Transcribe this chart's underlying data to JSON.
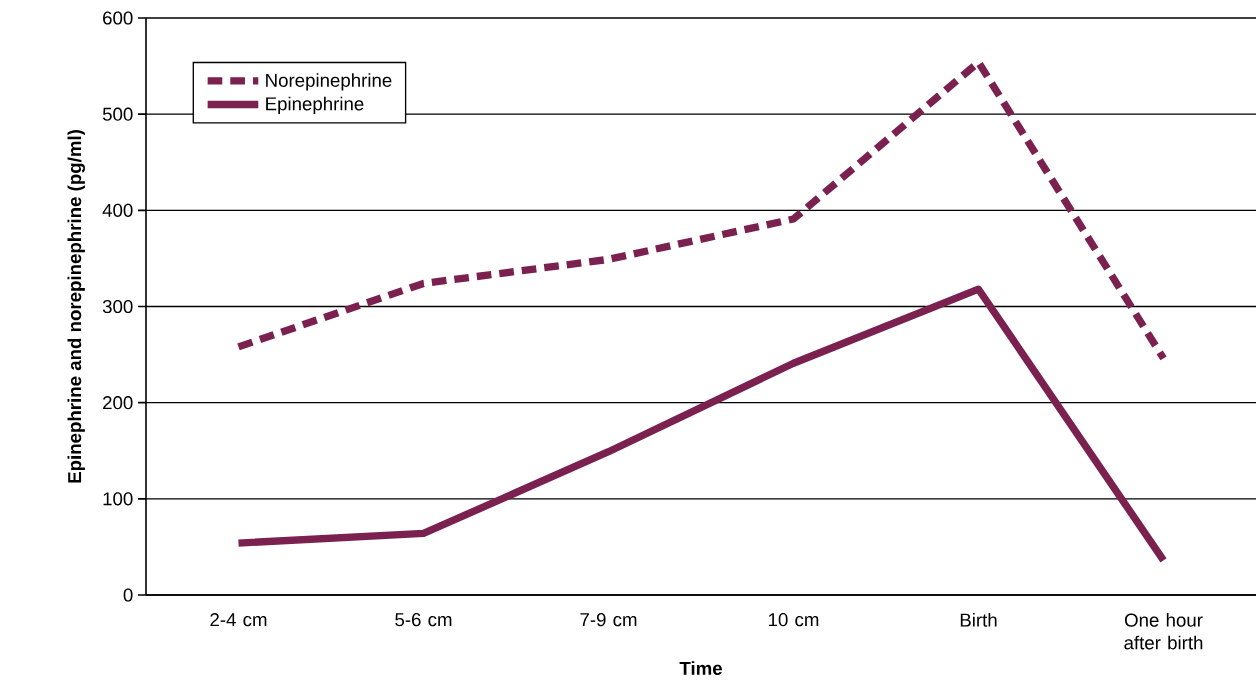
{
  "chart_data": {
    "type": "line",
    "xlabel": "Time",
    "ylabel": "Epinephrine and norepinephrine (pg/ml)",
    "categories": [
      "2-4 cm",
      "5-6 cm",
      "7-9 cm",
      "10 cm",
      "Birth",
      "One hour after birth"
    ],
    "series": [
      {
        "name": "Norepinephrine",
        "color": "#7b2150",
        "line_style": "dashed",
        "values": [
          258,
          324,
          349,
          391,
          554,
          246
        ]
      },
      {
        "name": "Epinephrine",
        "color": "#7b2150",
        "line_style": "solid",
        "values": [
          54,
          64,
          149,
          241,
          318,
          36
        ]
      }
    ],
    "ylim": [
      0,
      600
    ],
    "yticks": [
      0,
      100,
      200,
      300,
      400,
      500,
      600
    ],
    "grid": "y",
    "legend": "top left",
    "marker": "none"
  }
}
